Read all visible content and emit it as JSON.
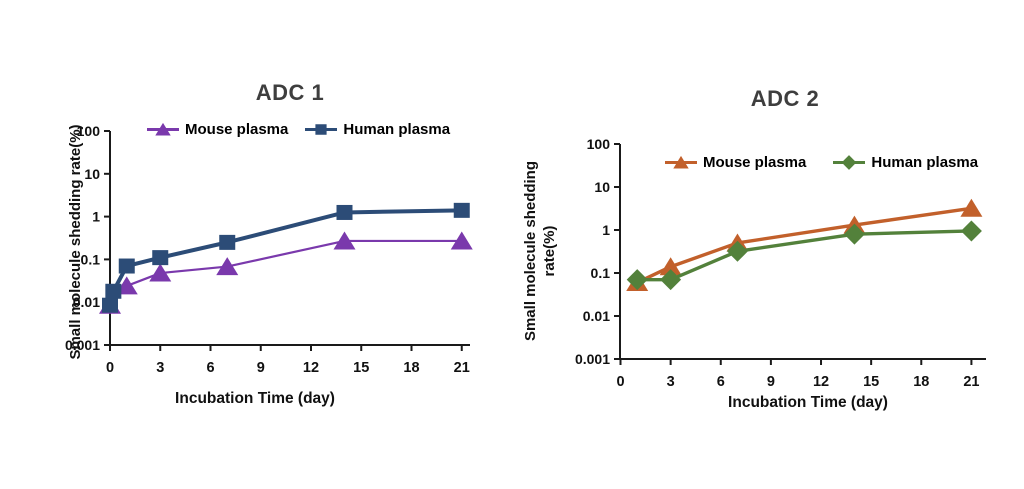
{
  "page": {
    "background_color": "#ffffff",
    "text_color": "#111111",
    "title_color": "#3e3e3e"
  },
  "chart_data": [
    {
      "type": "line",
      "title": "ADC 1",
      "xlabel": "Incubation Time (day)",
      "ylabel": "Small molecule shedding rate(%)",
      "ylabel_lines": [
        "Small molecule shedding rate(%)"
      ],
      "y_scale": "log",
      "ylim": [
        0.001,
        100
      ],
      "xlim": [
        0,
        21.5
      ],
      "x_ticks": [
        0,
        3,
        6,
        9,
        12,
        15,
        18,
        21
      ],
      "y_ticks": [
        100,
        10,
        1,
        0.1,
        0.01,
        0.001
      ],
      "grid": false,
      "legend_position": "top-inside",
      "series": [
        {
          "name": "Mouse plasma",
          "marker": "triangle",
          "color": "#7A39AC",
          "line_width": 2.2,
          "points": [
            [
              0,
              0.0085
            ],
            [
              1,
              0.024
            ],
            [
              3,
              0.048
            ],
            [
              7,
              0.068
            ],
            [
              14,
              0.27
            ],
            [
              21,
              0.27
            ]
          ]
        },
        {
          "name": "Human plasma",
          "marker": "square",
          "color": "#2C4C77",
          "line_width": 4,
          "points": [
            [
              0,
              0.0085
            ],
            [
              0.2,
              0.018
            ],
            [
              1,
              0.07
            ],
            [
              3,
              0.11
            ],
            [
              7,
              0.25
            ],
            [
              14,
              1.25
            ],
            [
              21,
              1.4
            ]
          ]
        }
      ]
    },
    {
      "type": "line",
      "title": "ADC 2",
      "xlabel": "Incubation Time (day)",
      "ylabel": "Small molecule shedding rate(%)",
      "ylabel_lines": [
        "Small molecule shedding",
        "rate(%)"
      ],
      "y_scale": "log",
      "ylim": [
        0.001,
        100
      ],
      "xlim": [
        0,
        21.5
      ],
      "x_ticks": [
        0,
        3,
        6,
        9,
        12,
        15,
        18,
        21
      ],
      "y_ticks": [
        100,
        10,
        1,
        0.1,
        0.01,
        0.001
      ],
      "grid": false,
      "legend_position": "top-inside",
      "series": [
        {
          "name": "Mouse plasma",
          "marker": "triangle",
          "color": "#C2602B",
          "line_width": 3.4,
          "points": [
            [
              1,
              0.06
            ],
            [
              3,
              0.14
            ],
            [
              7,
              0.5
            ],
            [
              14,
              1.3
            ],
            [
              21,
              3.2
            ]
          ]
        },
        {
          "name": "Human plasma",
          "marker": "diamond",
          "color": "#53813B",
          "line_width": 3.4,
          "points": [
            [
              1,
              0.07
            ],
            [
              3,
              0.07
            ],
            [
              7,
              0.32
            ],
            [
              14,
              0.8
            ],
            [
              21,
              0.95
            ]
          ]
        }
      ]
    }
  ]
}
